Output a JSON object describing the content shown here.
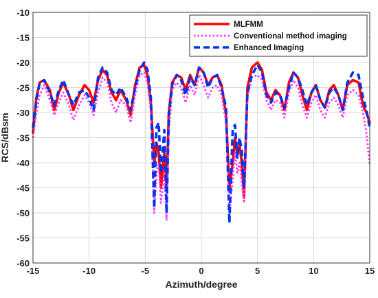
{
  "chart_data": {
    "type": "line",
    "xlabel": "Azimuth/degree",
    "ylabel": "RCS/dBsm",
    "xlim": [
      -15,
      15
    ],
    "ylim": [
      -60,
      -10
    ],
    "xticks": [
      -15,
      -10,
      -5,
      0,
      5,
      10,
      15
    ],
    "yticks": [
      -60,
      -55,
      -50,
      -45,
      -40,
      -35,
      -30,
      -25,
      -20,
      -15,
      -10
    ],
    "grid": true,
    "legend_position": "top-right",
    "series": [
      {
        "name": "MLFMM",
        "color": "#ff0000",
        "style": "solid",
        "x": [
          -15,
          -14.7,
          -14.4,
          -14.0,
          -13.5,
          -13.1,
          -12.7,
          -12.3,
          -11.8,
          -11.4,
          -10.9,
          -10.4,
          -10.0,
          -9.6,
          -9.2,
          -8.8,
          -8.4,
          -8.0,
          -7.6,
          -7.2,
          -6.7,
          -6.3,
          -5.9,
          -5.5,
          -5.1,
          -4.8,
          -4.5,
          -4.2,
          -4.0,
          -3.8,
          -3.6,
          -3.3,
          -3.1,
          -2.9,
          -2.6,
          -2.2,
          -1.8,
          -1.4,
          -1.0,
          -0.6,
          -0.2,
          0.2,
          0.6,
          1.0,
          1.4,
          1.8,
          2.2,
          2.5,
          2.8,
          3.0,
          3.2,
          3.4,
          3.6,
          3.8,
          4.1,
          4.5,
          5.0,
          5.4,
          5.8,
          6.2,
          6.6,
          7.0,
          7.4,
          7.8,
          8.2,
          8.6,
          9.0,
          9.4,
          9.8,
          10.2,
          10.6,
          11.0,
          11.4,
          11.8,
          12.2,
          12.6,
          13.0,
          13.5,
          14.0,
          14.4,
          14.7,
          15
        ],
        "y": [
          -34,
          -27,
          -24,
          -23.5,
          -25.5,
          -29.5,
          -26,
          -24,
          -26.5,
          -29.5,
          -26.5,
          -24.5,
          -25.5,
          -28,
          -23.5,
          -21.5,
          -22.5,
          -26,
          -27.5,
          -25.5,
          -27.5,
          -30.5,
          -24.5,
          -21,
          -20.5,
          -22.5,
          -28,
          -40,
          -36,
          -38,
          -45,
          -38,
          -45,
          -30,
          -24,
          -22.5,
          -23,
          -25.5,
          -22.5,
          -24.5,
          -21,
          -22,
          -24.5,
          -23,
          -22.5,
          -24.5,
          -30.5,
          -45,
          -40,
          -35,
          -38.5,
          -36.5,
          -40,
          -47,
          -25,
          -21,
          -20,
          -21.5,
          -26,
          -27.5,
          -25.5,
          -26.5,
          -29.5,
          -24,
          -22,
          -23,
          -26.5,
          -29.5,
          -26,
          -24.5,
          -27.5,
          -29,
          -25.5,
          -24.5,
          -26.5,
          -29.5,
          -24.5,
          -23.5,
          -24,
          -28.5,
          -30,
          -32
        ]
      },
      {
        "name": "Conventional method imaging",
        "color": "#ff33ff",
        "style": "dotted",
        "x": [
          -15,
          -14.7,
          -14.4,
          -14.0,
          -13.5,
          -13.1,
          -12.7,
          -12.3,
          -11.8,
          -11.4,
          -10.9,
          -10.4,
          -10.0,
          -9.6,
          -9.2,
          -8.8,
          -8.4,
          -8.0,
          -7.6,
          -7.2,
          -6.7,
          -6.3,
          -5.9,
          -5.5,
          -5.1,
          -4.8,
          -4.5,
          -4.2,
          -4.0,
          -3.8,
          -3.6,
          -3.3,
          -3.1,
          -2.9,
          -2.6,
          -2.2,
          -1.8,
          -1.4,
          -1.0,
          -0.6,
          -0.2,
          0.2,
          0.6,
          1.0,
          1.4,
          1.8,
          2.2,
          2.5,
          2.8,
          3.0,
          3.2,
          3.4,
          3.6,
          3.8,
          4.1,
          4.5,
          5.0,
          5.4,
          5.8,
          6.2,
          6.6,
          7.0,
          7.4,
          7.8,
          8.2,
          8.6,
          9.0,
          9.4,
          9.8,
          10.2,
          10.6,
          11.0,
          11.4,
          11.8,
          12.2,
          12.6,
          13.0,
          13.5,
          14.0,
          14.4,
          14.7,
          15
        ],
        "y": [
          -35,
          -30,
          -26.5,
          -24.5,
          -27.5,
          -30.5,
          -28,
          -26,
          -28.5,
          -31.5,
          -28.5,
          -26.5,
          -28,
          -30.5,
          -26,
          -23,
          -24,
          -28,
          -30,
          -27.5,
          -28.5,
          -32,
          -26.5,
          -22.5,
          -22,
          -24,
          -30,
          -50,
          -42,
          -40,
          -48,
          -42,
          -51.5,
          -34,
          -25.5,
          -24,
          -25,
          -28,
          -24.5,
          -26.5,
          -22.5,
          -24.5,
          -27,
          -25,
          -24.5,
          -26.5,
          -32,
          -50.5,
          -43,
          -38,
          -42,
          -40,
          -44,
          -48,
          -27,
          -23,
          -22.5,
          -23.5,
          -27.5,
          -29.5,
          -27.5,
          -28,
          -31,
          -26,
          -23.5,
          -25,
          -28.5,
          -31,
          -28,
          -26.5,
          -29.5,
          -31,
          -28,
          -27,
          -28.5,
          -31,
          -26.5,
          -25.5,
          -26.5,
          -30,
          -34,
          -40.5
        ]
      },
      {
        "name": "Enhanced Imaging",
        "color": "#0033ee",
        "style": "dashed",
        "x": [
          -15,
          -14.7,
          -14.4,
          -14.0,
          -13.5,
          -13.1,
          -12.7,
          -12.3,
          -11.8,
          -11.4,
          -10.9,
          -10.4,
          -10.0,
          -9.6,
          -9.2,
          -8.8,
          -8.4,
          -8.0,
          -7.6,
          -7.2,
          -6.7,
          -6.3,
          -5.9,
          -5.5,
          -5.1,
          -4.8,
          -4.5,
          -4.2,
          -4.0,
          -3.8,
          -3.6,
          -3.3,
          -3.1,
          -2.9,
          -2.6,
          -2.2,
          -1.8,
          -1.4,
          -1.0,
          -0.6,
          -0.2,
          0.2,
          0.6,
          1.0,
          1.4,
          1.8,
          2.2,
          2.5,
          2.8,
          3.0,
          3.2,
          3.4,
          3.6,
          3.8,
          4.1,
          4.5,
          5.0,
          5.4,
          5.8,
          6.2,
          6.6,
          7.0,
          7.4,
          7.8,
          8.2,
          8.6,
          9.0,
          9.4,
          9.8,
          10.2,
          10.6,
          11.0,
          11.4,
          11.8,
          12.2,
          12.6,
          13.0,
          13.5,
          14.0,
          14.4,
          14.7,
          15
        ],
        "y": [
          -33,
          -27.5,
          -24,
          -23.5,
          -26,
          -28.5,
          -25.5,
          -23.5,
          -26.5,
          -28.5,
          -26,
          -25.5,
          -27,
          -29.5,
          -23,
          -21,
          -22,
          -25.5,
          -26.5,
          -25,
          -27,
          -29.5,
          -25,
          -21.5,
          -20,
          -21.5,
          -27,
          -49,
          -33,
          -32,
          -42,
          -33.5,
          -50,
          -30.5,
          -24.5,
          -22.5,
          -23.5,
          -26.5,
          -23,
          -24.5,
          -21,
          -22,
          -25,
          -23,
          -22.5,
          -25,
          -29,
          -52,
          -33,
          -32.5,
          -39,
          -35,
          -37.5,
          -45,
          -26,
          -22.5,
          -20.5,
          -22,
          -26.5,
          -28,
          -26,
          -26.5,
          -29,
          -25,
          -22,
          -23,
          -25.5,
          -28.5,
          -26,
          -24.5,
          -27.5,
          -29,
          -26,
          -25,
          -26.5,
          -29.5,
          -24,
          -22,
          -22.5,
          -27,
          -29.5,
          -33
        ]
      }
    ]
  }
}
